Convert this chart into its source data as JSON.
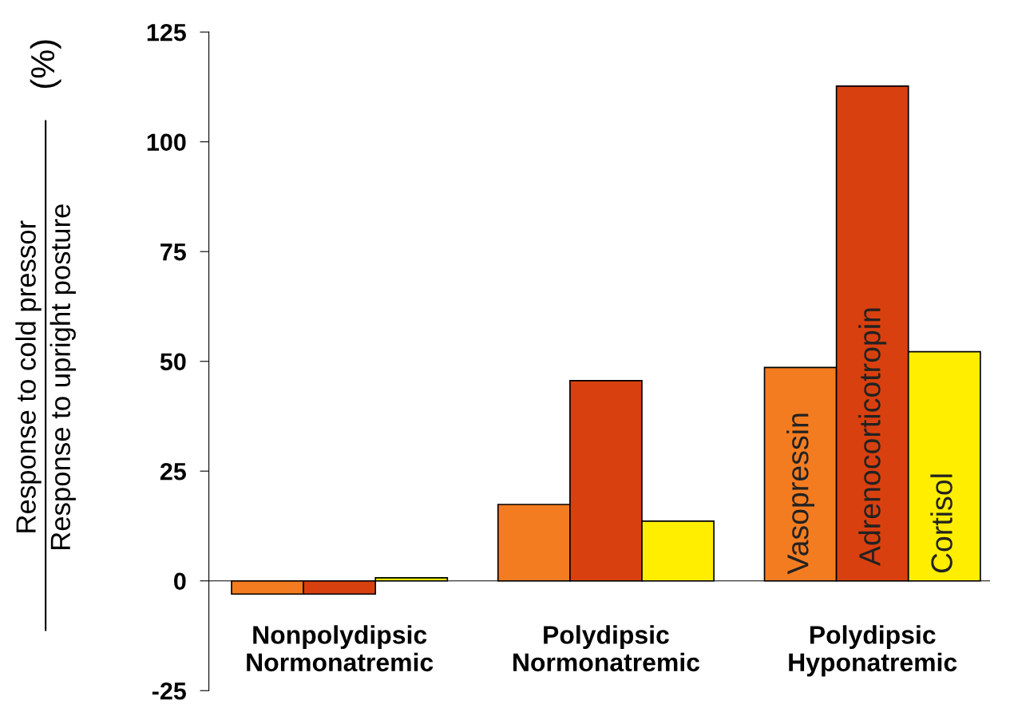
{
  "chart_data": {
    "type": "bar",
    "ylabel": "Response to cold pressor\nResponse to upright posture\n(%)",
    "categories": [
      "Nonpolydipsic\nNormonatremic",
      "Polydipsic\nNormonatremic",
      "Polydipsic\nHyponatremic"
    ],
    "series": [
      {
        "name": "Vasopressin",
        "color": "#f47c20",
        "values": [
          -3,
          17.4,
          48.6
        ]
      },
      {
        "name": "Adrenocorticotropin",
        "color": "#d9400f",
        "values": [
          -3,
          45.6,
          112.7
        ]
      },
      {
        "name": "Cortisol",
        "color": "#ffee00",
        "values": [
          0.7,
          13.6,
          52.2
        ]
      }
    ],
    "ylim": [
      -25,
      125
    ],
    "yticks": [
      -25,
      0,
      25,
      50,
      75,
      100,
      125
    ],
    "grid": false,
    "legend": false
  }
}
